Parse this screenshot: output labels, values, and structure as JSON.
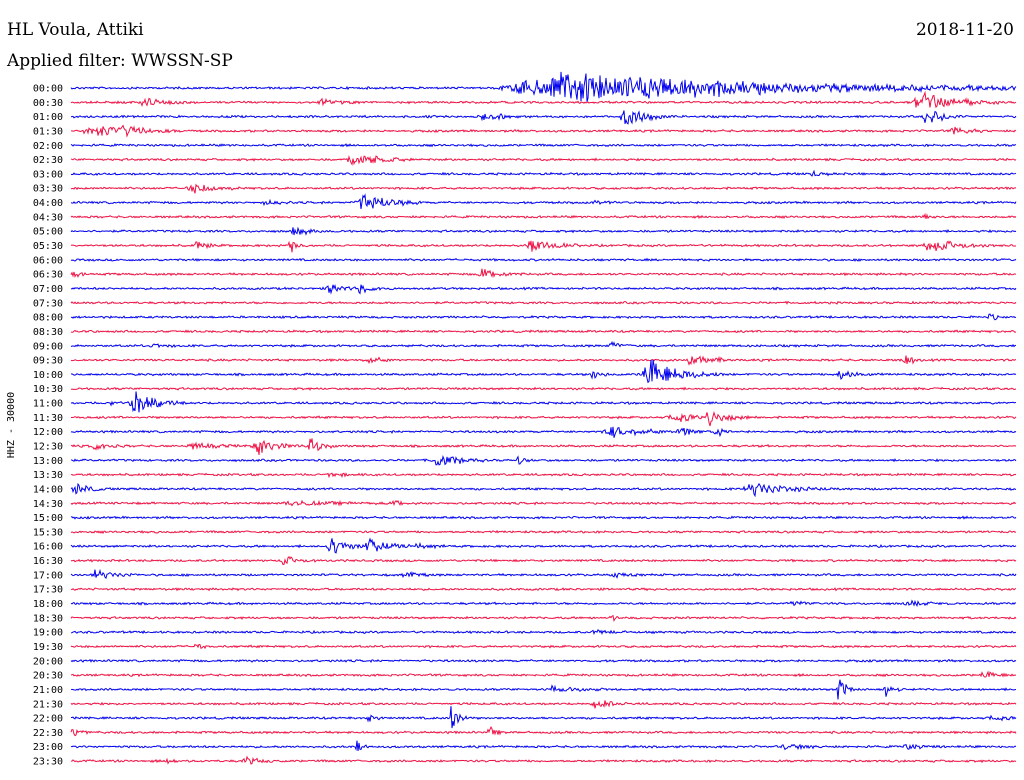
{
  "header": {
    "station": "HL Voula, Attiki",
    "filter": "Applied filter: WWSSN-SP",
    "date": "2018-11-20"
  },
  "chart_data": {
    "type": "helicorder",
    "ylabel": "HHZ - 30000",
    "colors": [
      "#0000ee",
      "#ee1144"
    ],
    "rows": [
      {
        "label": "00:00",
        "events": [
          [
            0.45,
            0.6,
            1.0
          ],
          [
            0.68,
            0.06,
            0.15
          ]
        ]
      },
      {
        "label": "00:30",
        "events": [
          [
            0.07,
            0.06,
            0.25
          ],
          [
            0.26,
            0.05,
            0.2
          ],
          [
            0.89,
            0.1,
            0.7
          ]
        ]
      },
      {
        "label": "01:00",
        "events": [
          [
            0.43,
            0.06,
            0.25
          ],
          [
            0.58,
            0.06,
            0.7
          ],
          [
            0.9,
            0.05,
            0.5
          ]
        ]
      },
      {
        "label": "01:30",
        "events": [
          [
            0.01,
            0.1,
            0.35
          ],
          [
            0.05,
            0.05,
            0.4
          ],
          [
            0.93,
            0.04,
            0.3
          ]
        ]
      },
      {
        "label": "02:00",
        "events": []
      },
      {
        "label": "02:30",
        "events": [
          [
            0.29,
            0.07,
            0.55
          ]
        ]
      },
      {
        "label": "03:00",
        "events": [
          [
            0.78,
            0.04,
            0.15
          ]
        ]
      },
      {
        "label": "03:30",
        "events": [
          [
            0.12,
            0.06,
            0.35
          ]
        ]
      },
      {
        "label": "04:00",
        "events": [
          [
            0.3,
            0.07,
            0.7
          ],
          [
            0.2,
            0.04,
            0.15
          ],
          [
            0.55,
            0.04,
            0.15
          ]
        ]
      },
      {
        "label": "04:30",
        "events": [
          [
            0.9,
            0.02,
            0.2
          ]
        ]
      },
      {
        "label": "05:00",
        "events": [
          [
            0.23,
            0.05,
            0.25
          ]
        ]
      },
      {
        "label": "05:30",
        "events": [
          [
            0.13,
            0.03,
            0.3
          ],
          [
            0.23,
            0.02,
            0.45
          ],
          [
            0.48,
            0.06,
            0.5
          ],
          [
            0.9,
            0.08,
            0.45
          ]
        ]
      },
      {
        "label": "06:00",
        "events": []
      },
      {
        "label": "06:30",
        "events": [
          [
            0.0,
            0.02,
            0.3
          ],
          [
            0.43,
            0.05,
            0.4
          ]
        ]
      },
      {
        "label": "07:00",
        "events": [
          [
            0.27,
            0.03,
            0.65
          ],
          [
            0.3,
            0.04,
            0.3
          ]
        ]
      },
      {
        "label": "07:30",
        "events": []
      },
      {
        "label": "08:00",
        "events": [
          [
            0.97,
            0.02,
            0.2
          ]
        ]
      },
      {
        "label": "08:30",
        "events": []
      },
      {
        "label": "09:00",
        "events": [
          [
            0.08,
            0.04,
            0.15
          ],
          [
            0.57,
            0.02,
            0.4
          ]
        ]
      },
      {
        "label": "09:30",
        "events": [
          [
            0.31,
            0.04,
            0.2
          ],
          [
            0.65,
            0.06,
            0.4
          ],
          [
            0.88,
            0.02,
            0.55
          ]
        ]
      },
      {
        "label": "10:00",
        "events": [
          [
            0.55,
            0.02,
            0.45
          ],
          [
            0.6,
            0.09,
            1.0
          ],
          [
            0.81,
            0.04,
            0.35
          ]
        ]
      },
      {
        "label": "10:30",
        "events": []
      },
      {
        "label": "11:00",
        "events": [
          [
            0.06,
            0.06,
            0.75
          ],
          [
            0.04,
            0.02,
            0.15
          ]
        ]
      },
      {
        "label": "11:30",
        "events": [
          [
            0.63,
            0.05,
            0.45
          ],
          [
            0.67,
            0.05,
            0.55
          ]
        ]
      },
      {
        "label": "12:00",
        "events": [
          [
            0.56,
            0.1,
            0.3
          ],
          [
            0.64,
            0.03,
            0.4
          ],
          [
            0.68,
            0.02,
            0.35
          ]
        ]
      },
      {
        "label": "12:30",
        "events": [
          [
            0.02,
            0.04,
            0.3
          ],
          [
            0.19,
            0.06,
            0.5
          ],
          [
            0.25,
            0.03,
            0.6
          ],
          [
            0.12,
            0.08,
            0.15
          ]
        ]
      },
      {
        "label": "13:00",
        "events": [
          [
            0.38,
            0.06,
            0.45
          ],
          [
            0.47,
            0.02,
            0.3
          ]
        ]
      },
      {
        "label": "13:30",
        "events": [
          [
            0.27,
            0.04,
            0.15
          ]
        ]
      },
      {
        "label": "14:00",
        "events": [
          [
            0.0,
            0.04,
            0.35
          ],
          [
            0.71,
            0.1,
            0.4
          ]
        ]
      },
      {
        "label": "14:30",
        "events": [
          [
            0.22,
            0.12,
            0.15
          ],
          [
            0.34,
            0.02,
            0.3
          ]
        ]
      },
      {
        "label": "15:00",
        "events": []
      },
      {
        "label": "15:30",
        "events": []
      },
      {
        "label": "16:00",
        "events": [
          [
            0.27,
            0.05,
            0.6
          ],
          [
            0.31,
            0.05,
            0.6
          ],
          [
            0.35,
            0.05,
            0.2
          ]
        ]
      },
      {
        "label": "16:30",
        "events": [
          [
            0.22,
            0.04,
            0.3
          ]
        ]
      },
      {
        "label": "17:00",
        "events": [
          [
            0.02,
            0.05,
            0.3
          ],
          [
            0.35,
            0.03,
            0.2
          ],
          [
            0.57,
            0.03,
            0.15
          ]
        ]
      },
      {
        "label": "17:30",
        "events": []
      },
      {
        "label": "18:00",
        "events": [
          [
            0.76,
            0.04,
            0.15
          ],
          [
            0.88,
            0.05,
            0.15
          ]
        ]
      },
      {
        "label": "18:30",
        "events": [
          [
            0.57,
            0.02,
            0.15
          ]
        ]
      },
      {
        "label": "19:00",
        "events": [
          [
            0.55,
            0.04,
            0.15
          ]
        ]
      },
      {
        "label": "19:30",
        "events": [
          [
            0.13,
            0.02,
            0.2
          ]
        ]
      },
      {
        "label": "20:00",
        "events": []
      },
      {
        "label": "20:30",
        "events": [
          [
            0.96,
            0.04,
            0.25
          ]
        ]
      },
      {
        "label": "21:00",
        "events": [
          [
            0.5,
            0.08,
            0.15
          ],
          [
            0.81,
            0.02,
            1.0
          ],
          [
            0.86,
            0.02,
            0.65
          ]
        ]
      },
      {
        "label": "21:30",
        "events": [
          [
            0.55,
            0.04,
            0.35
          ]
        ]
      },
      {
        "label": "22:00",
        "events": [
          [
            0.31,
            0.02,
            0.3
          ],
          [
            0.4,
            0.02,
            0.95
          ],
          [
            0.97,
            0.03,
            0.3
          ]
        ]
      },
      {
        "label": "22:30",
        "events": [
          [
            0.0,
            0.02,
            0.35
          ],
          [
            0.44,
            0.02,
            0.35
          ]
        ]
      },
      {
        "label": "23:00",
        "events": [
          [
            0.3,
            0.02,
            0.3
          ],
          [
            0.75,
            0.05,
            0.2
          ],
          [
            0.88,
            0.04,
            0.15
          ]
        ]
      },
      {
        "label": "23:30",
        "events": [
          [
            0.1,
            0.02,
            0.25
          ],
          [
            0.18,
            0.04,
            0.25
          ]
        ]
      }
    ]
  }
}
